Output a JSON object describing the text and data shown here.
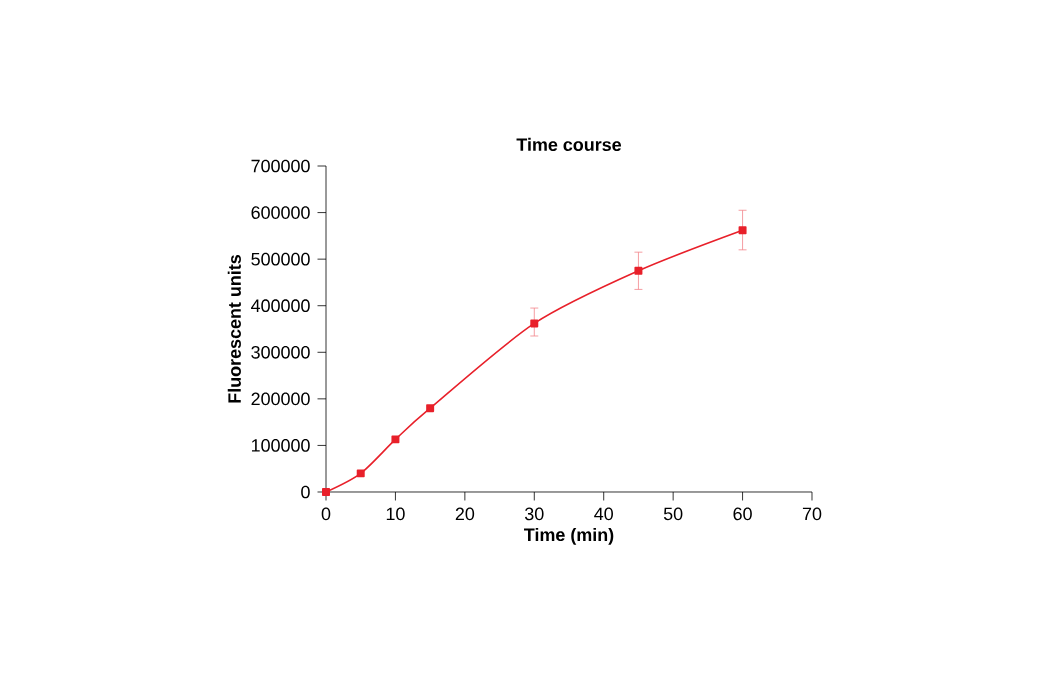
{
  "chart_data": {
    "type": "line",
    "title": "Time course",
    "xlabel": "Time (min)",
    "ylabel": "Fluorescent units",
    "x": [
      0,
      5,
      10,
      15,
      30,
      45,
      60
    ],
    "series": [
      {
        "color": "#e8202a",
        "values": [
          0,
          40000,
          113000,
          180000,
          362000,
          475000,
          562000
        ],
        "errors": [
          null,
          null,
          null,
          null,
          [
            335000,
            395000
          ],
          [
            435000,
            515000
          ],
          [
            520000,
            605000
          ]
        ]
      }
    ],
    "xlim": [
      0,
      70
    ],
    "xticks": [
      0,
      10,
      20,
      30,
      40,
      50,
      60,
      70
    ],
    "ylim": [
      0,
      700000
    ],
    "yticks": [
      0,
      100000,
      200000,
      300000,
      400000,
      500000,
      600000,
      700000
    ],
    "marker": "square",
    "line_style": "solid"
  }
}
